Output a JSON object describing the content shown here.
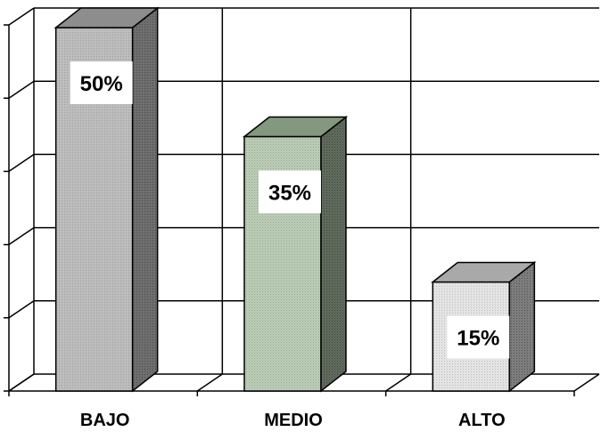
{
  "chart_data": {
    "type": "bar",
    "style": "3d-column",
    "categories": [
      "BAJO",
      "MEDIO",
      "ALTO"
    ],
    "values": [
      50,
      35,
      15
    ],
    "data_labels": [
      "50%",
      "35%",
      "15%"
    ],
    "ylim": [
      0,
      50
    ],
    "grid": true,
    "legend": "none",
    "colors": {
      "bars": [
        "#bdbdbd",
        "#b9cbb4",
        "#e4e4e4"
      ],
      "bar_sides": [
        "#6e6e6e",
        "#5f6a5c",
        "#7d7d7d"
      ],
      "bar_tops": [
        "#8d8d8d",
        "#84977f",
        "#a9a9a9"
      ],
      "grid": "#000000",
      "background": "#ffffff"
    }
  }
}
